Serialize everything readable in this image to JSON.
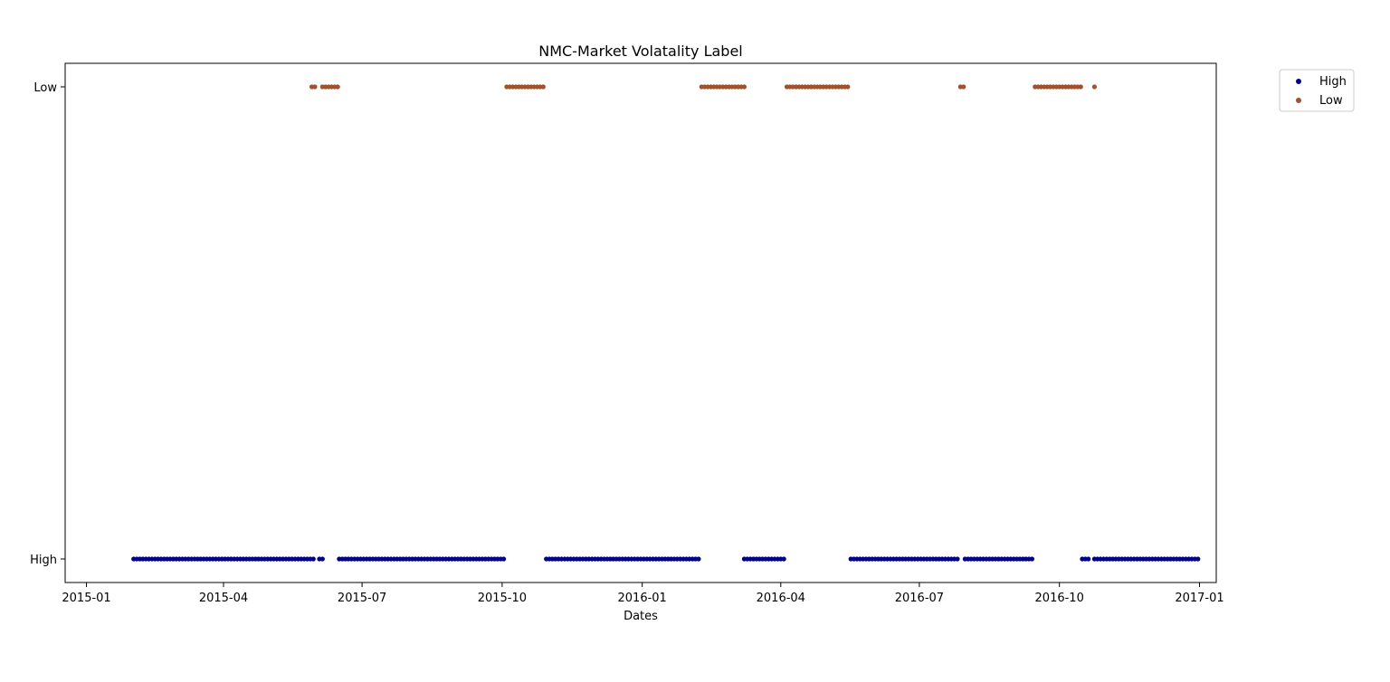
{
  "chart_data": {
    "type": "scatter",
    "title": "NMC-Market Volatality Label",
    "xlabel": "Dates",
    "ylabel": "",
    "xlim": [
      "2014-12-18",
      "2017-01-12"
    ],
    "y_categories": [
      "High",
      "Low"
    ],
    "x_ticks": [
      "2015-01",
      "2015-04",
      "2015-07",
      "2015-10",
      "2016-01",
      "2016-04",
      "2016-07",
      "2016-10",
      "2017-01"
    ],
    "grid": false,
    "legend_placement": "upper-right-outside",
    "series": [
      {
        "name": "High",
        "color": "#00008b",
        "y": "High",
        "ranges": [
          [
            "2015-02-01",
            "2015-05-30"
          ],
          [
            "2015-06-03",
            "2015-06-05"
          ],
          [
            "2015-06-16",
            "2015-10-03"
          ],
          [
            "2015-10-30",
            "2016-02-08"
          ],
          [
            "2016-03-08",
            "2016-04-04"
          ],
          [
            "2016-05-17",
            "2016-07-27"
          ],
          [
            "2016-07-31",
            "2016-09-14"
          ],
          [
            "2016-10-16",
            "2016-10-20"
          ],
          [
            "2016-10-24",
            "2016-12-31"
          ]
        ]
      },
      {
        "name": "Low",
        "color": "#a0522d",
        "y": "Low",
        "ranges": [
          [
            "2015-05-29",
            "2015-05-31"
          ],
          [
            "2015-06-05",
            "2015-06-16"
          ],
          [
            "2015-10-04",
            "2015-10-29"
          ],
          [
            "2016-02-09",
            "2016-03-08"
          ],
          [
            "2016-04-05",
            "2016-05-16"
          ],
          [
            "2016-07-28",
            "2016-07-30"
          ],
          [
            "2016-09-15",
            "2016-10-15"
          ],
          [
            "2016-10-24",
            "2016-10-24"
          ]
        ]
      }
    ]
  }
}
